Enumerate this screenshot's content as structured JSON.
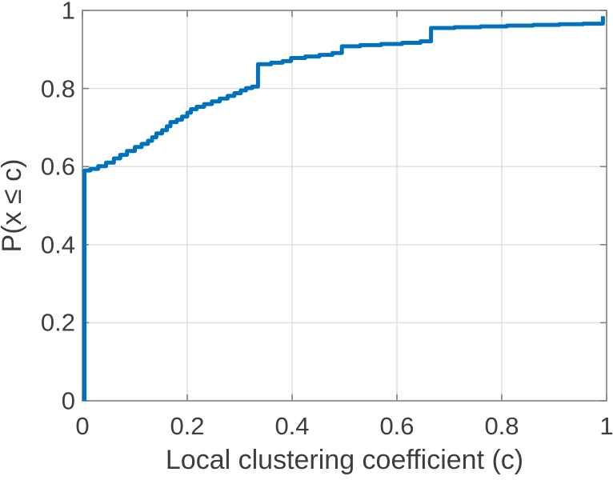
{
  "figure": {
    "background": "#ffffff"
  },
  "chart_data": {
    "type": "line",
    "subtype": "empirical-cdf-step",
    "title": "",
    "xlabel": "Local clustering coefficient (c)",
    "ylabel": "P(x ≤ c)",
    "xlim": [
      0,
      1
    ],
    "ylim": [
      0,
      1
    ],
    "grid": true,
    "legend_position": "none",
    "x_ticks": [
      0,
      0.2,
      0.4,
      0.6,
      0.8,
      1
    ],
    "x_tick_labels": [
      "0",
      "0.2",
      "0.4",
      "0.6",
      "0.8",
      "1"
    ],
    "y_ticks": [
      0,
      0.2,
      0.4,
      0.6,
      0.8,
      1
    ],
    "y_tick_labels": [
      "0",
      "0.2",
      "0.4",
      "0.6",
      "0.8",
      "1"
    ],
    "colors": {
      "line": "#0072bd",
      "grid": "#dcdcdc",
      "axis": "#808080",
      "text": "#3d3d3d"
    },
    "series": [
      {
        "name": "empirical-cdf",
        "color": "#0072bd",
        "line_width": 5,
        "step": true,
        "points": [
          [
            0.004,
            0.0
          ],
          [
            0.004,
            0.59
          ],
          [
            0.015,
            0.594
          ],
          [
            0.03,
            0.601
          ],
          [
            0.045,
            0.61
          ],
          [
            0.06,
            0.621
          ],
          [
            0.072,
            0.63
          ],
          [
            0.085,
            0.64
          ],
          [
            0.1,
            0.65
          ],
          [
            0.113,
            0.658
          ],
          [
            0.125,
            0.666
          ],
          [
            0.133,
            0.675
          ],
          [
            0.141,
            0.685
          ],
          [
            0.152,
            0.693
          ],
          [
            0.161,
            0.703
          ],
          [
            0.168,
            0.714
          ],
          [
            0.18,
            0.72
          ],
          [
            0.19,
            0.728
          ],
          [
            0.2,
            0.738
          ],
          [
            0.207,
            0.747
          ],
          [
            0.218,
            0.753
          ],
          [
            0.232,
            0.76
          ],
          [
            0.247,
            0.767
          ],
          [
            0.262,
            0.774
          ],
          [
            0.277,
            0.781
          ],
          [
            0.29,
            0.788
          ],
          [
            0.302,
            0.795
          ],
          [
            0.312,
            0.801
          ],
          [
            0.324,
            0.805
          ],
          [
            0.335,
            0.862
          ],
          [
            0.36,
            0.866
          ],
          [
            0.382,
            0.87
          ],
          [
            0.398,
            0.878
          ],
          [
            0.425,
            0.882
          ],
          [
            0.452,
            0.886
          ],
          [
            0.477,
            0.891
          ],
          [
            0.495,
            0.908
          ],
          [
            0.53,
            0.911
          ],
          [
            0.57,
            0.914
          ],
          [
            0.61,
            0.917
          ],
          [
            0.645,
            0.921
          ],
          [
            0.665,
            0.955
          ],
          [
            0.71,
            0.957
          ],
          [
            0.76,
            0.959
          ],
          [
            0.81,
            0.961
          ],
          [
            0.86,
            0.963
          ],
          [
            0.91,
            0.9645
          ],
          [
            0.955,
            0.966
          ],
          [
            0.993,
            0.967
          ],
          [
            0.993,
            0.985
          ]
        ]
      }
    ]
  }
}
